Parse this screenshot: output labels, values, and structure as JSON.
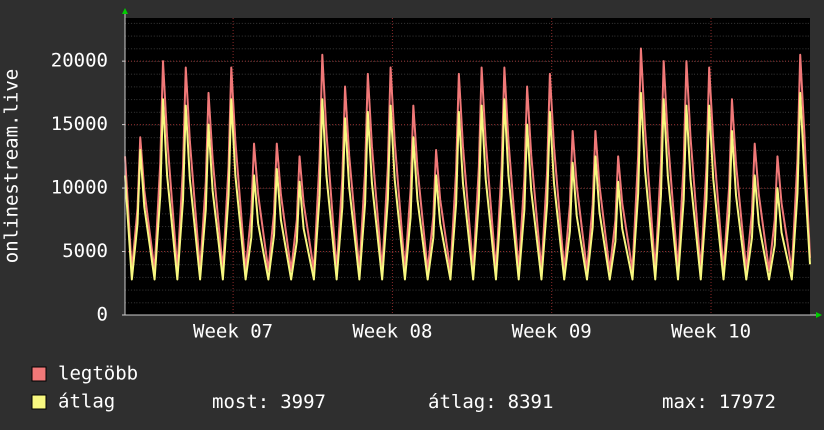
{
  "chart_data": {
    "type": "line",
    "y_label": "onlinestream.live",
    "x": [
      0,
      0.3,
      0.55,
      0.67,
      0.85,
      1.3,
      1.55,
      1.67,
      1.85,
      2.3,
      2.55,
      2.67,
      2.85,
      3.3,
      3.55,
      3.67,
      3.85,
      4.3,
      4.55,
      4.67,
      4.85,
      5.3,
      5.55,
      5.67,
      5.85,
      6.3,
      6.55,
      6.67,
      6.85,
      7.3,
      7.55,
      7.67,
      7.85,
      8.3,
      8.55,
      8.67,
      8.85,
      9.3,
      9.55,
      9.67,
      9.85,
      10.3,
      10.55,
      10.67,
      10.85,
      11.3,
      11.55,
      11.67,
      11.85,
      12.3,
      12.55,
      12.67,
      12.85,
      13.3,
      13.55,
      13.67,
      13.85,
      14.3,
      14.55,
      14.67,
      14.85,
      15.3,
      15.55,
      15.67,
      15.85,
      16.3,
      16.55,
      16.67,
      16.85,
      17.3,
      17.55,
      17.67,
      17.85,
      18.3,
      18.55,
      18.67,
      18.85,
      19.3,
      19.55,
      19.67,
      19.85,
      20.3,
      20.55,
      20.67,
      20.85,
      21.3,
      21.55,
      21.67,
      21.85,
      22.3,
      22.55,
      22.67,
      22.85,
      23.3,
      23.55,
      23.67,
      23.85,
      24.3,
      24.55,
      24.67,
      24.85,
      25.3,
      25.55,
      25.67,
      25.85,
      26.3,
      26.55,
      26.67,
      26.85,
      27.3,
      27.55,
      27.67,
      27.85,
      28.3,
      28.55,
      28.67,
      28.85,
      29.3,
      29.55,
      29.67,
      29.85,
      30.1
    ],
    "series": [
      {
        "name": "legtöbb",
        "color": "#f07878",
        "values": [
          12500,
          3500,
          8400,
          14000,
          9800,
          3500,
          12000,
          20000,
          14000,
          3500,
          11700,
          19500,
          13700,
          3500,
          10500,
          17500,
          12300,
          3500,
          11700,
          19500,
          13700,
          3500,
          8100,
          13500,
          9500,
          3500,
          8100,
          13500,
          9500,
          3500,
          7500,
          12500,
          8800,
          3500,
          12300,
          20500,
          14400,
          3500,
          10800,
          18000,
          12600,
          3500,
          11400,
          19000,
          13300,
          3500,
          11700,
          19500,
          13700,
          3500,
          9900,
          16500,
          11600,
          3500,
          7800,
          13000,
          9100,
          3500,
          11400,
          19000,
          13300,
          3500,
          11700,
          19500,
          13700,
          3500,
          11700,
          19500,
          13700,
          3500,
          10800,
          18000,
          12600,
          3500,
          11400,
          19000,
          13300,
          3500,
          8700,
          14500,
          10200,
          3500,
          8700,
          14500,
          10200,
          3500,
          7500,
          12500,
          8800,
          3500,
          12600,
          21000,
          14700,
          3500,
          12000,
          20000,
          14000,
          3500,
          12000,
          20000,
          14000,
          3500,
          11700,
          19500,
          13700,
          3500,
          10200,
          17000,
          11900,
          3500,
          8100,
          13500,
          9500,
          3500,
          7500,
          12500,
          8800,
          3500,
          12300,
          20500,
          14400,
          4500
        ]
      },
      {
        "name": "átlag",
        "color": "#f8f880",
        "values": [
          11000,
          2800,
          7200,
          13000,
          8500,
          2800,
          9400,
          17000,
          11000,
          2800,
          9100,
          16500,
          10700,
          2800,
          8300,
          15000,
          9800,
          2800,
          9400,
          17000,
          11000,
          2800,
          6100,
          11000,
          7200,
          2800,
          6300,
          11500,
          7500,
          2800,
          5800,
          10500,
          6800,
          2800,
          9400,
          17000,
          11000,
          2800,
          8500,
          15500,
          10100,
          2800,
          8800,
          16000,
          10400,
          2800,
          9100,
          16500,
          10700,
          2800,
          7700,
          14000,
          9100,
          2800,
          6100,
          11000,
          7200,
          2800,
          8800,
          16000,
          10400,
          2800,
          9100,
          16500,
          10700,
          2800,
          9400,
          17000,
          11000,
          2800,
          8300,
          15000,
          9800,
          2800,
          8800,
          16000,
          10400,
          2800,
          6600,
          12000,
          7800,
          2800,
          6900,
          12500,
          8100,
          2800,
          5800,
          10500,
          6800,
          2800,
          9600,
          17500,
          11400,
          2800,
          9400,
          17000,
          11000,
          2800,
          9100,
          16500,
          10700,
          2800,
          9100,
          16500,
          10700,
          2800,
          8000,
          14500,
          9400,
          2800,
          6100,
          11000,
          7200,
          2800,
          5500,
          10000,
          6500,
          2800,
          9600,
          17500,
          11400,
          3997
        ]
      }
    ],
    "xlim": [
      0,
      30.1
    ],
    "xticks": [
      {
        "value": 4.75,
        "label": "Week 07"
      },
      {
        "value": 11.75,
        "label": "Week 08"
      },
      {
        "value": 18.75,
        "label": "Week 09"
      },
      {
        "value": 25.75,
        "label": "Week 10"
      }
    ],
    "ylim": [
      0,
      23400
    ],
    "yticks": [
      0,
      5000,
      10000,
      15000,
      20000
    ],
    "grid": true,
    "legend_stats": [
      {
        "label": "most:",
        "value": 3997
      },
      {
        "label": "átlag:",
        "value": 8391
      },
      {
        "label": "max:",
        "value": 17972
      }
    ]
  }
}
